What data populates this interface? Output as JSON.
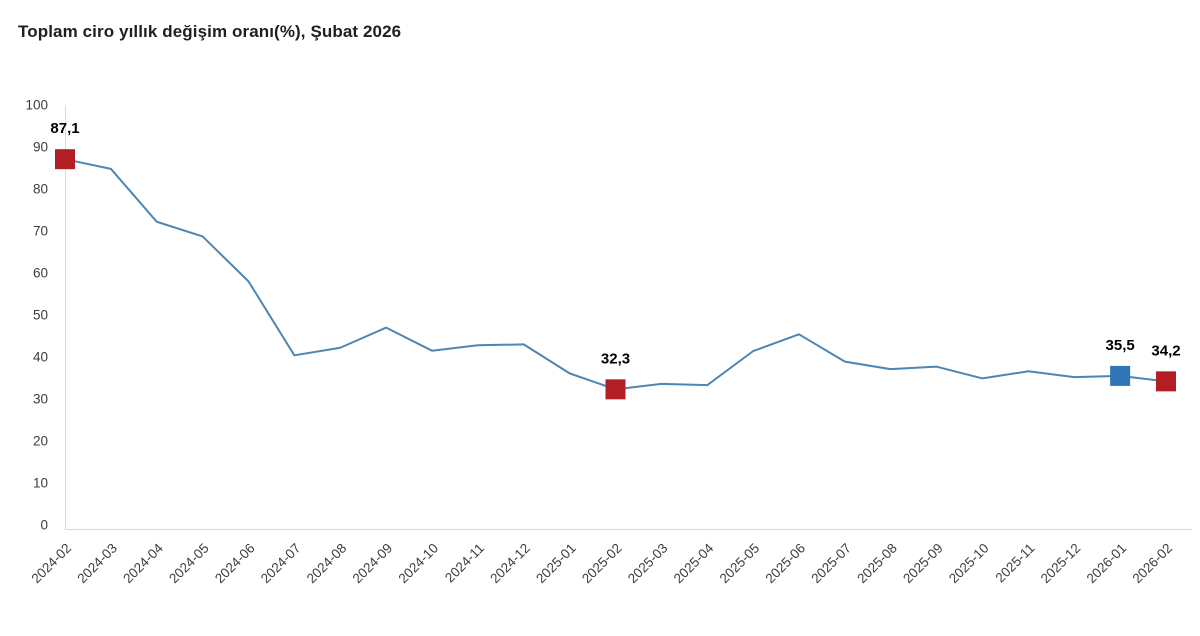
{
  "title": "Toplam ciro yıllık değişim oranı(%), Şubat 2026",
  "chart_data": {
    "type": "line",
    "title": "Toplam ciro yıllık değişim oranı(%), Şubat 2026",
    "xlabel": "",
    "ylabel": "",
    "ylim": [
      0,
      100
    ],
    "y_ticks": [
      0,
      10,
      20,
      30,
      40,
      50,
      60,
      70,
      80,
      90,
      100
    ],
    "grid": false,
    "legend": "none",
    "line_color": "#4d86b2",
    "categories": [
      "2024-02",
      "2024-03",
      "2024-04",
      "2024-05",
      "2024-06",
      "2024-07",
      "2024-08",
      "2024-09",
      "2024-10",
      "2024-11",
      "2024-12",
      "2025-01",
      "2025-02",
      "2025-03",
      "2025-04",
      "2025-05",
      "2025-06",
      "2025-07",
      "2025-08",
      "2025-09",
      "2025-10",
      "2025-11",
      "2025-12",
      "2026-01",
      "2026-02"
    ],
    "values": [
      87.1,
      84.8,
      72.2,
      68.7,
      58.0,
      40.4,
      42.2,
      47.0,
      41.5,
      42.8,
      43.0,
      36.1,
      32.3,
      33.6,
      33.3,
      41.4,
      45.4,
      38.9,
      37.1,
      37.7,
      34.9,
      36.6,
      35.2,
      35.5,
      34.2
    ],
    "marked_points": [
      {
        "category": "2024-02",
        "value": 87.1,
        "label": "87,1",
        "marker_color": "#b11f24"
      },
      {
        "category": "2025-02",
        "value": 32.3,
        "label": "32,3",
        "marker_color": "#b11f24"
      },
      {
        "category": "2026-01",
        "value": 35.5,
        "label": "35,5",
        "marker_color": "#2e76b5"
      },
      {
        "category": "2026-02",
        "value": 34.2,
        "label": "34,2",
        "marker_color": "#b11f24"
      }
    ]
  },
  "colors": {
    "axis_line": "#d9d9d9",
    "tick_text": "#3d3d3d",
    "data_label_text": "#000000",
    "title_text": "#1f1f1f"
  }
}
